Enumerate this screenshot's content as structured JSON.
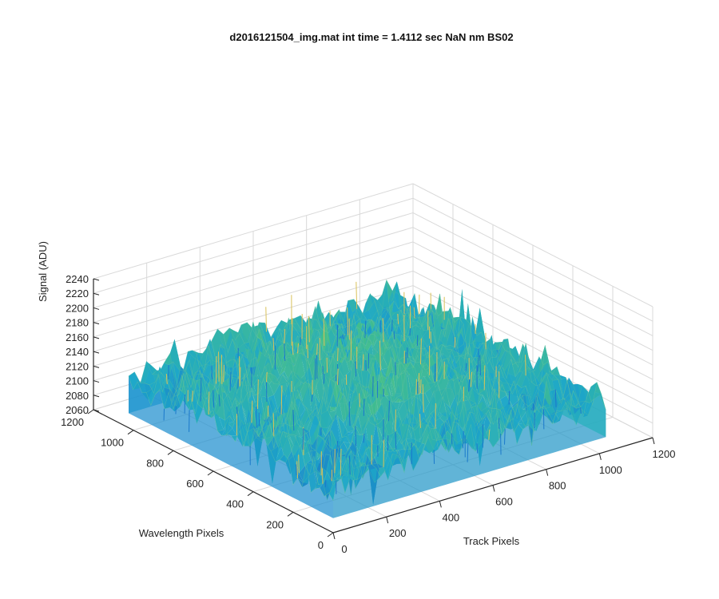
{
  "chart_data": {
    "type": "surface",
    "title": "d2016121504_img.mat int time = 1.4112 sec  NaN nm BS02",
    "xlabel": "Track Pixels",
    "ylabel": "Wavelength Pixels",
    "zlabel": "Signal (ADU)",
    "xlim": [
      0,
      1200
    ],
    "ylim": [
      0,
      1200
    ],
    "zlim": [
      2060,
      2240
    ],
    "x_ticks": [
      "0",
      "200",
      "400",
      "600",
      "800",
      "1000",
      "1200"
    ],
    "y_ticks": [
      "0",
      "200",
      "400",
      "600",
      "800",
      "1000",
      "1200"
    ],
    "z_ticks": [
      "2060",
      "2080",
      "2100",
      "2120",
      "2140",
      "2160",
      "2180",
      "2200",
      "2220",
      "2240"
    ],
    "grid": true,
    "colormap": "parula",
    "data_x_range": [
      0,
      1024
    ],
    "data_y_range": [
      0,
      1024
    ],
    "baseline_signal": 2120,
    "peak_signal": 2225,
    "minimum_signal": 2060,
    "colors": {
      "low": "#1f77d1",
      "mid": "#27b8a5",
      "high": "#e3ba4b"
    }
  }
}
